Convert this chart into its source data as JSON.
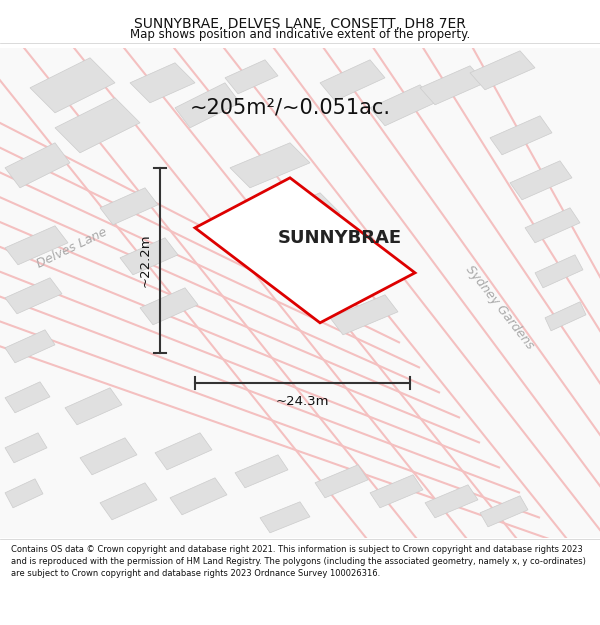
{
  "title": "SUNNYBRAE, DELVES LANE, CONSETT, DH8 7ER",
  "subtitle": "Map shows position and indicative extent of the property.",
  "property_label": "SUNNYBRAE",
  "area_label": "~205m²/~0.051ac.",
  "width_label": "~24.3m",
  "height_label": "~22.2m",
  "road_label_left": "Delves Lane",
  "road_label_right": "Sydney Gardens",
  "footer_text": "Contains OS data © Crown copyright and database right 2021. This information is subject to Crown copyright and database rights 2023 and is reproduced with the permission of HM Land Registry. The polygons (including the associated geometry, namely x, y co-ordinates) are subject to Crown copyright and database rights 2023 Ordnance Survey 100026316.",
  "bg_color": "#f7f7f7",
  "plot_fill_color": "#ffffff",
  "plot_edge_color": "#dd0000",
  "building_fill_color": "#e0e0e0",
  "building_edge_color": "#cccccc",
  "road_line_color": "#f4c0c0",
  "dim_line_color": "#333333",
  "road_label_color": "#aaaaaa",
  "header_bg": "#ffffff",
  "footer_bg": "#ffffff"
}
